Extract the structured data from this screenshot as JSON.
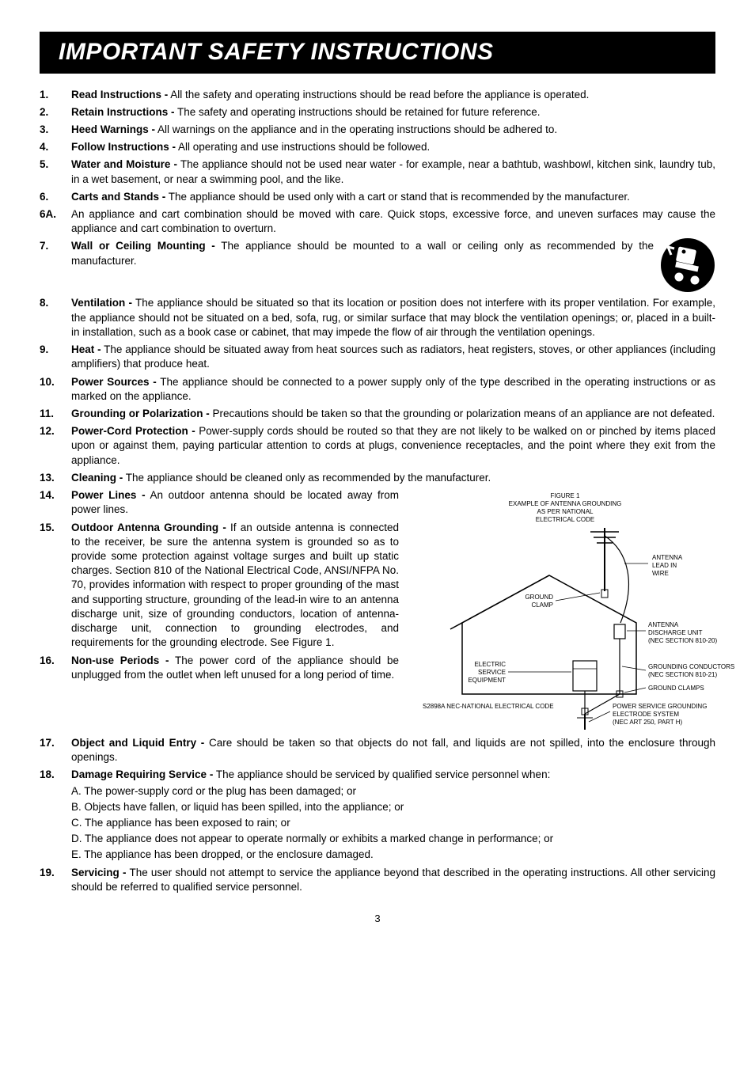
{
  "title": "IMPORTANT SAFETY INSTRUCTIONS",
  "page_number": "3",
  "items": [
    {
      "n": "1.",
      "t": "Read Instructions -",
      "b": " All the safety and operating instructions should be read before the appliance is operated."
    },
    {
      "n": "2.",
      "t": "Retain Instructions -",
      "b": " The safety and operating instructions should be retained for future reference."
    },
    {
      "n": "3.",
      "t": "Heed Warnings -",
      "b": " All warnings on the appliance and in the operating instructions should be adhered to."
    },
    {
      "n": "4.",
      "t": "Follow Instructions -",
      "b": " All operating and use instructions should be followed."
    },
    {
      "n": "5.",
      "t": "Water and Moisture -",
      "b": " The appliance should not be used near water - for example, near a bathtub, washbowl, kitchen sink, laundry tub, in a wet basement, or near a swimming pool, and the like."
    },
    {
      "n": "6.",
      "t": "Carts and Stands -",
      "b": " The appliance should be used only with a cart or stand that is recommended by the manufacturer."
    },
    {
      "n": "6A.",
      "t": "",
      "b": "An appliance and cart combination should be moved with care. Quick stops, excessive force, and uneven surfaces may cause the appliance and cart combination to overturn."
    },
    {
      "n": "7.",
      "t": "Wall or Ceiling Mounting -",
      "b": " The appliance should be mounted to a wall or ceiling only as recommended by the manufacturer."
    },
    {
      "n": "8.",
      "t": "Ventilation -",
      "b": " The appliance should be situated so that its location or position does not interfere with its proper ventilation. For example, the appliance should not be situated on a bed, sofa, rug, or similar surface that may block the ventilation openings; or, placed in a built-in installation, such as a book case or cabinet, that may impede the flow of air through the ventilation openings."
    },
    {
      "n": "9.",
      "t": "Heat -",
      "b": " The appliance should be situated away from heat sources such as radiators, heat registers, stoves, or other appliances (including amplifiers) that produce heat."
    },
    {
      "n": "10.",
      "t": "Power Sources -",
      "b": " The appliance should be connected to a power supply only of the type described in the operating instructions or as marked on the appliance."
    },
    {
      "n": "11.",
      "t": "Grounding or Polarization -",
      "b": " Precautions should be taken so that the grounding or polarization means of an appliance are not defeated."
    },
    {
      "n": "12.",
      "t": "Power-Cord Protection -",
      "b": " Power-supply cords should be routed so that they are not likely to be walked on or pinched by items placed upon or against them, paying particular attention to cords at plugs, convenience receptacles, and the point where they exit from the appliance."
    },
    {
      "n": "13.",
      "t": "Cleaning -",
      "b": " The appliance should be cleaned only as recommended by the manufacturer."
    }
  ],
  "item14": {
    "n": "14.",
    "t": "Power Lines -",
    "b": " An outdoor antenna should be located away from power lines."
  },
  "item15": {
    "n": "15.",
    "t": "Outdoor Antenna Grounding -",
    "b": " If an outside antenna is connected to the receiver, be sure the antenna system is grounded so as to provide some protection against voltage surges and built up static charges. Section 810 of the National Electrical Code, ANSI/NFPA No. 70, provides information with respect to proper grounding of the mast and supporting structure, grounding of the lead-in wire to an antenna discharge unit, size of grounding conductors, location of antenna-discharge unit, connection to grounding electrodes, and requirements for the grounding electrode. See Figure 1."
  },
  "item16": {
    "n": "16.",
    "t": "Non-use Periods -",
    "b": " The power cord of the appliance should be unplugged from the outlet when left unused for a long period of time."
  },
  "item17": {
    "n": "17.",
    "t": "Object and Liquid Entry -",
    "b": " Care should be taken so that objects do not fall, and liquids are not spilled, into the enclosure through openings."
  },
  "item18": {
    "n": "18.",
    "t": "Damage Requiring Service -",
    "b": " The appliance should be serviced by qualified service personnel when:",
    "subs": [
      "A. The power-supply cord or the plug has been damaged; or",
      "B. Objects have fallen, or liquid has been spilled, into the appliance; or",
      "C. The appliance has been exposed to rain; or",
      "D. The appliance does not appear to operate normally or exhibits a marked change in performance; or",
      "E. The appliance has been dropped, or the enclosure damaged."
    ]
  },
  "item19": {
    "n": "19.",
    "t": "Servicing -",
    "b": " The user should not attempt to service the appliance beyond that described in the operating instructions. All other servicing should be referred to qualified service personnel."
  },
  "figure": {
    "title": "FIGURE 1",
    "subtitle1": "EXAMPLE OF ANTENNA GROUNDING",
    "subtitle2": "AS PER NATIONAL",
    "subtitle3": "ELECTRICAL CODE",
    "labels": {
      "antenna_lead": "ANTENNA LEAD IN WIRE",
      "ground_clamp": "GROUND CLAMP",
      "antenna_discharge": "ANTENNA DISCHARGE UNIT (NEC SECTION 810-20)",
      "electric_service": "ELECTRIC SERVICE EQUIPMENT",
      "grounding_conductors": "GROUNDING CONDUCTORS (NEC SECTION 810-21)",
      "ground_clamps": "GROUND CLAMPS",
      "power_service": "POWER SERVICE GROUNDING ELECTRODE SYSTEM (NEC ART 250, PART H)",
      "nec_national": "S2898A NEC-NATIONAL ELECTRICAL CODE"
    },
    "colors": {
      "line": "#000000",
      "text": "#000000"
    }
  },
  "colors": {
    "band_bg": "#000000",
    "band_fg": "#ffffff",
    "text": "#000000",
    "page_bg": "#ffffff"
  }
}
